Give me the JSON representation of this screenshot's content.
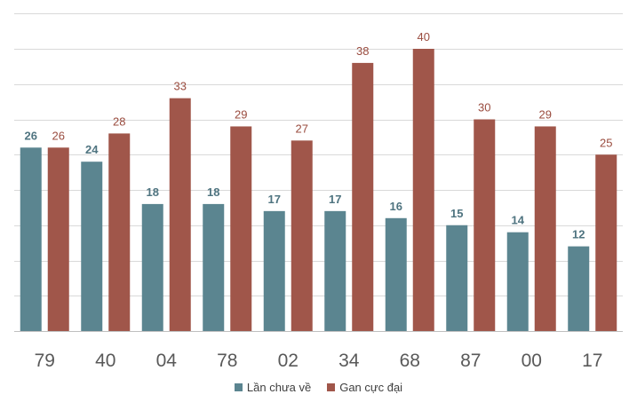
{
  "chart_data": {
    "type": "bar",
    "title": "",
    "xlabel": "",
    "ylabel": "",
    "ylim": [
      0,
      45
    ],
    "grid": true,
    "legend_position": "bottom",
    "categories": [
      "79",
      "40",
      "04",
      "78",
      "02",
      "34",
      "68",
      "87",
      "00",
      "17"
    ],
    "series": [
      {
        "name": "Lần chưa về",
        "color": "#5b8590",
        "label_color": "#4f7480",
        "values": [
          26,
          24,
          18,
          18,
          17,
          17,
          16,
          15,
          14,
          12
        ]
      },
      {
        "name": "Gan cực đại",
        "color": "#a0564a",
        "label_color": "#9a4c3f",
        "values": [
          26,
          28,
          33,
          29,
          27,
          38,
          40,
          30,
          29,
          25
        ]
      }
    ]
  }
}
